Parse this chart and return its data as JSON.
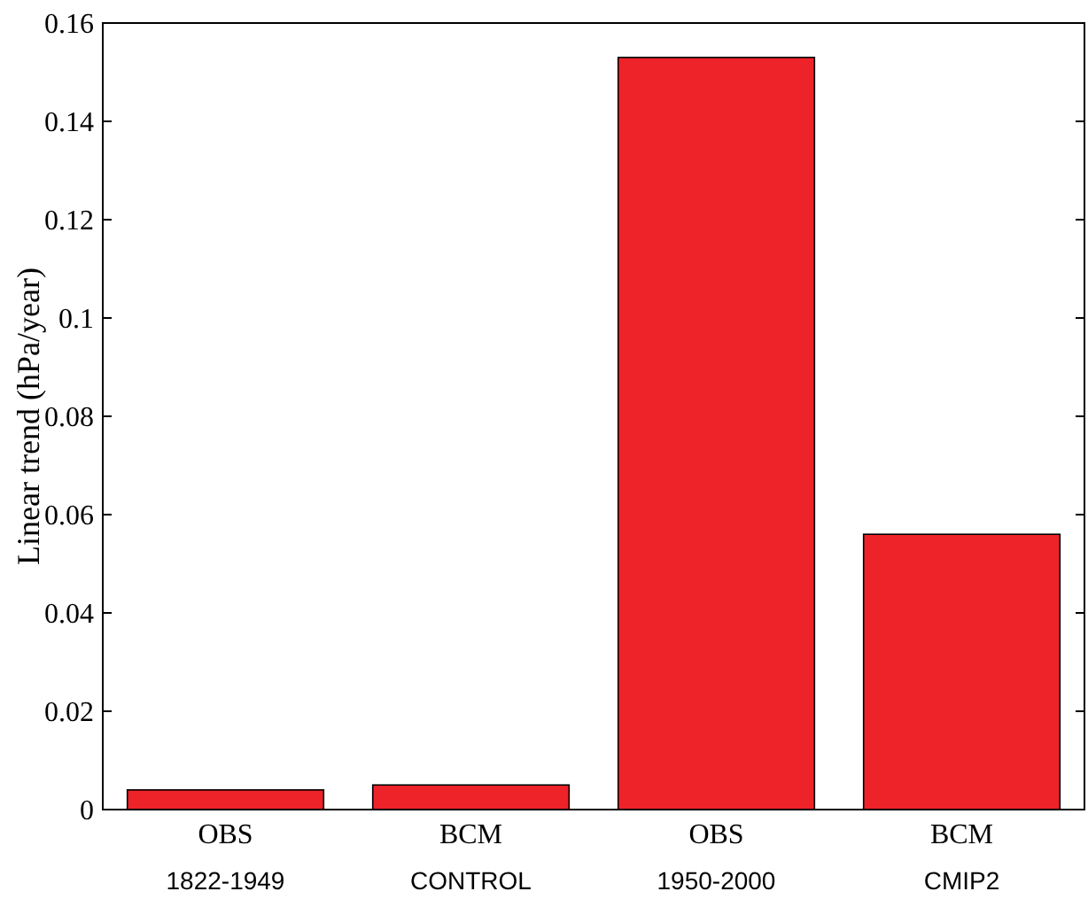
{
  "chart_data": {
    "type": "bar",
    "ylabel": "Linear trend (hPa/year)",
    "categories": [
      "OBS\n1822-1949",
      "BCM\nCONTROL",
      "OBS\n1950-2000",
      "BCM\nCMIP2"
    ],
    "values": [
      0.004,
      0.005,
      0.153,
      0.056
    ],
    "color": "#ee2229",
    "ylim": [
      0,
      0.16
    ],
    "yticks": [
      0,
      0.02,
      0.04,
      0.06,
      0.08,
      0.1,
      0.12,
      0.14,
      0.16
    ],
    "grid": false
  }
}
